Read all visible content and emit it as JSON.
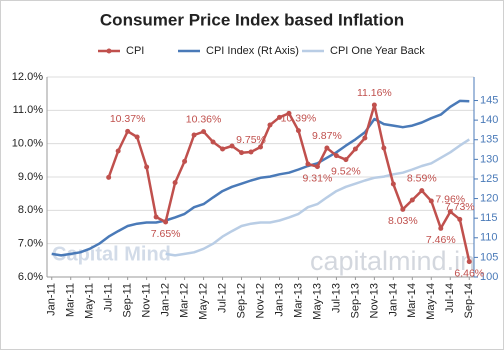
{
  "chart_data": {
    "type": "line",
    "title": "Consumer Price Index based Inflation",
    "categories": [
      "Jan-11",
      null,
      "Mar-11",
      null,
      "May-11",
      null,
      "Jul-11",
      null,
      "Sep-11",
      null,
      "Nov-11",
      null,
      "Jan-12",
      null,
      "Mar-12",
      null,
      "May-12",
      null,
      "Jul-12",
      null,
      "Sep-12",
      null,
      "Nov-12",
      null,
      "Jan-13",
      null,
      "Mar-13",
      null,
      "May-13",
      null,
      "Jul-13",
      null,
      "Sep-13",
      null,
      "Nov-13",
      null,
      "Jan-14",
      null,
      "Mar-14",
      null,
      "May-14",
      null,
      "Jul-14",
      null,
      "Sep-14"
    ],
    "ylim": [
      6,
      12
    ],
    "yticks": [
      {
        "value": 6,
        "label": "6.0%"
      },
      {
        "value": 7,
        "label": "7.0%"
      },
      {
        "value": 8,
        "label": "8.0%"
      },
      {
        "value": 9,
        "label": "9.0%"
      },
      {
        "value": 10,
        "label": "10.0%"
      },
      {
        "value": 11,
        "label": "11.0%"
      },
      {
        "value": 12,
        "label": "12.0%"
      }
    ],
    "y2lim": [
      100,
      151
    ],
    "y2ticks": [
      100,
      105,
      110,
      115,
      120,
      125,
      130,
      135,
      140,
      145
    ],
    "grid": true,
    "legend": "top",
    "annotations": [
      "Capital Mind",
      "capitalmind.in"
    ],
    "series": [
      {
        "name": "CPI",
        "color": "#c0504d",
        "marker": true,
        "values": [
          null,
          null,
          null,
          null,
          null,
          null,
          8.99,
          9.78,
          10.37,
          10.2,
          9.3,
          7.8,
          7.65,
          8.83,
          9.47,
          10.26,
          10.36,
          10.05,
          9.84,
          9.93,
          9.73,
          9.75,
          9.9,
          10.56,
          10.79,
          10.91,
          10.39,
          9.39,
          9.31,
          9.87,
          9.64,
          9.52,
          9.84,
          10.17,
          11.16,
          9.87,
          8.79,
          8.03,
          8.31,
          8.59,
          8.28,
          7.46,
          7.96,
          7.73,
          6.46
        ],
        "value_labels": [
          null,
          null,
          null,
          null,
          null,
          null,
          null,
          null,
          "10.37%",
          null,
          null,
          null,
          "7.65%",
          null,
          null,
          null,
          "10.36%",
          null,
          null,
          null,
          null,
          "9.75%",
          null,
          null,
          null,
          null,
          "10.39%",
          null,
          "9.31%",
          "9.87%",
          null,
          "9.52%",
          null,
          null,
          "11.16%",
          null,
          null,
          "8.03%",
          null,
          "8.59%",
          null,
          "7.46%",
          "7.96%",
          "7.73%",
          "6.46%"
        ]
      },
      {
        "name": "CPI Index (Rt Axis)",
        "color": "#4a7ab8",
        "axis": "y2",
        "marker": false,
        "values": [
          105.9,
          105.5,
          105.9,
          106.3,
          107.2,
          108.5,
          110.3,
          111.7,
          113.0,
          113.6,
          113.9,
          113.9,
          114.4,
          115.2,
          116.1,
          117.8,
          118.6,
          120.3,
          121.9,
          123.0,
          123.8,
          124.6,
          125.3,
          125.6,
          126.2,
          126.6,
          127.4,
          128.3,
          129.0,
          130.4,
          131.8,
          133.5,
          135.1,
          136.9,
          140.3,
          139.0,
          138.6,
          138.2,
          138.6,
          139.4,
          140.5,
          141.4,
          143.4,
          144.9,
          144.8
        ]
      },
      {
        "name": "CPI One Year Back",
        "color": "#b9cde5",
        "axis": "y2",
        "marker": false,
        "values": [
          null,
          null,
          null,
          null,
          null,
          null,
          null,
          null,
          null,
          null,
          null,
          null,
          105.9,
          105.5,
          105.9,
          106.3,
          107.2,
          108.5,
          110.3,
          111.7,
          113.0,
          113.6,
          113.9,
          113.9,
          114.4,
          115.2,
          116.1,
          117.8,
          118.6,
          120.3,
          121.9,
          123.0,
          123.8,
          124.6,
          125.3,
          125.6,
          126.2,
          126.6,
          127.4,
          128.3,
          129.0,
          130.4,
          131.8,
          133.5,
          135.1
        ]
      }
    ]
  }
}
